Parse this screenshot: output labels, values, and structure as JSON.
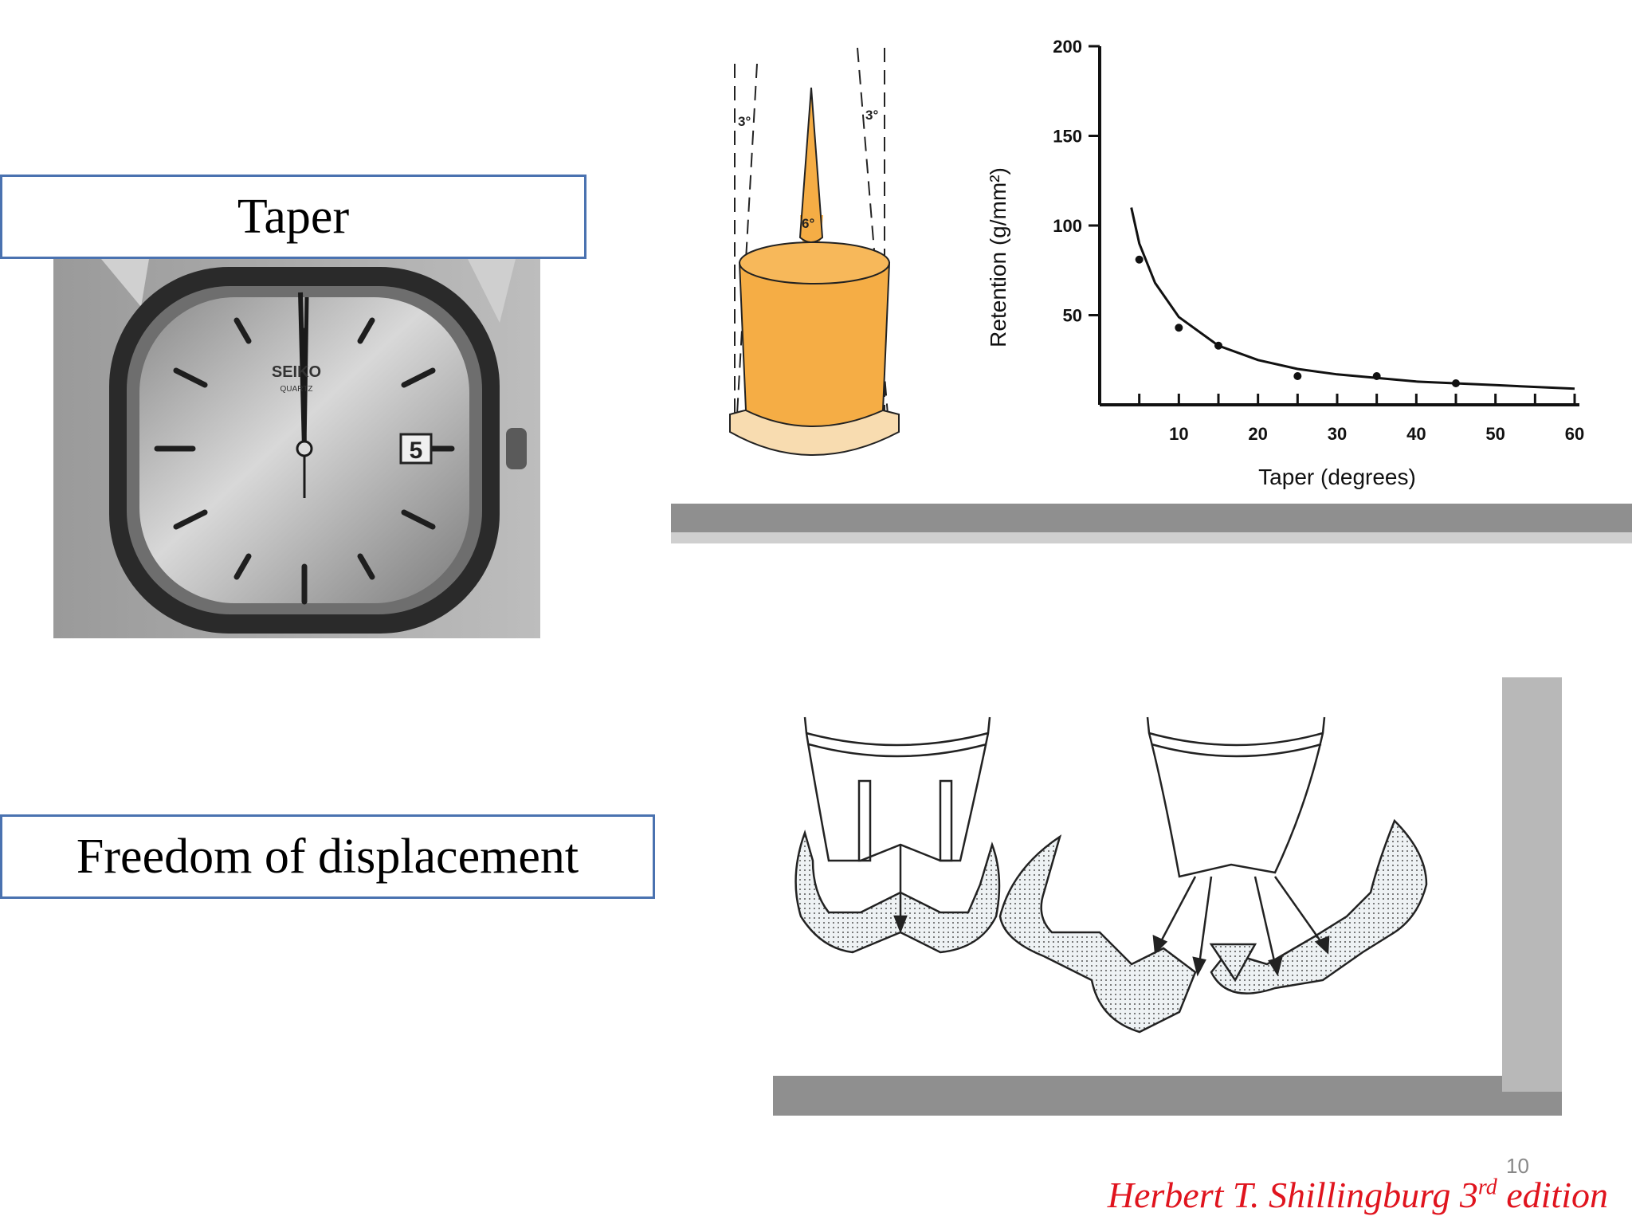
{
  "slide": {
    "labels": {
      "taper": "Taper",
      "freedom": "Freedom of displacement"
    },
    "citation": {
      "author": "Herbert T. Shillingburg 3",
      "sup": "rd",
      "edition": " edition"
    },
    "slide_number": "10",
    "colors": {
      "label_border": "#4a72b0",
      "citation": "#e0141e",
      "taper_fill": "#f5ad45",
      "base_fill": "#f8dcb0"
    }
  },
  "watch": {
    "brand": "SEIKO",
    "model": "QUARTZ",
    "date": "5"
  },
  "taper_diagram": {
    "left_angle": "3°",
    "right_angle": "3°",
    "total_angle": "6°"
  },
  "chart_data": {
    "type": "scatter",
    "xlabel": "Taper (degrees)",
    "ylabel": "Retention (g/mm²)",
    "xlim": [
      0,
      60
    ],
    "ylim": [
      0,
      200
    ],
    "xticks": [
      "10",
      "20",
      "30",
      "40",
      "50",
      "60"
    ],
    "yticks": [
      "50",
      "100",
      "150",
      "200"
    ],
    "points": [
      [
        5,
        81
      ],
      [
        10,
        43
      ],
      [
        15,
        33
      ],
      [
        25,
        16
      ],
      [
        35,
        16
      ],
      [
        45,
        12
      ]
    ],
    "curve": [
      [
        4,
        110
      ],
      [
        5,
        90
      ],
      [
        7,
        68
      ],
      [
        10,
        49
      ],
      [
        15,
        33
      ],
      [
        20,
        25
      ],
      [
        25,
        20
      ],
      [
        30,
        17
      ],
      [
        40,
        13
      ],
      [
        50,
        11
      ],
      [
        60,
        9
      ]
    ]
  }
}
